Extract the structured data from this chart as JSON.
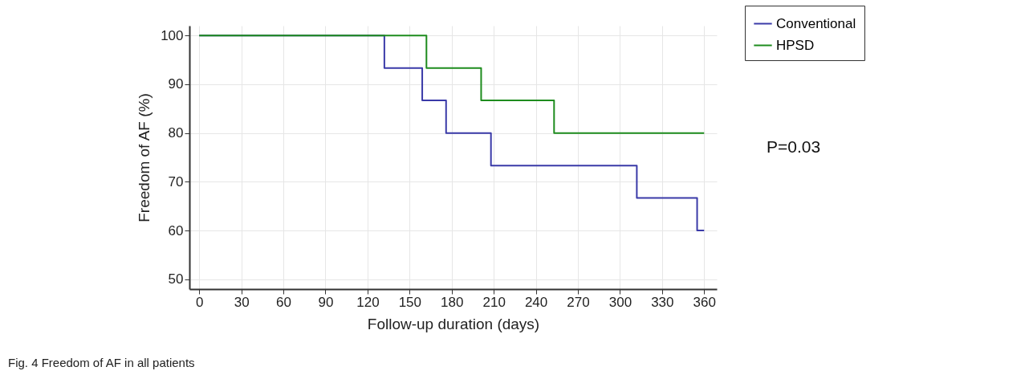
{
  "chart_data": {
    "type": "step",
    "xlabel": "Follow-up duration (days)",
    "ylabel": "Freedom of AF (%)",
    "xlim": [
      -7,
      369
    ],
    "ylim": [
      48,
      102
    ],
    "xticks": [
      0,
      30,
      60,
      90,
      120,
      150,
      180,
      210,
      240,
      270,
      300,
      330,
      360
    ],
    "yticks": [
      50,
      60,
      70,
      80,
      90,
      100
    ],
    "grid": true,
    "legend": "top right",
    "line_style": "solid",
    "marker": "none",
    "series": [
      {
        "name": "Conventional",
        "color": "#3a3aa8",
        "x": [
          0,
          132,
          159,
          176,
          208,
          312,
          355,
          360
        ],
        "values": [
          100,
          93.3,
          86.7,
          80,
          73.3,
          66.7,
          60,
          60
        ]
      },
      {
        "name": "HPSD",
        "color": "#1e8c1e",
        "x": [
          0,
          162,
          201,
          253,
          360
        ],
        "values": [
          100,
          93.3,
          86.7,
          80,
          80
        ]
      }
    ],
    "annotations": [
      "P=0.03",
      "Fig. 4 Freedom of AF in all patients"
    ]
  }
}
